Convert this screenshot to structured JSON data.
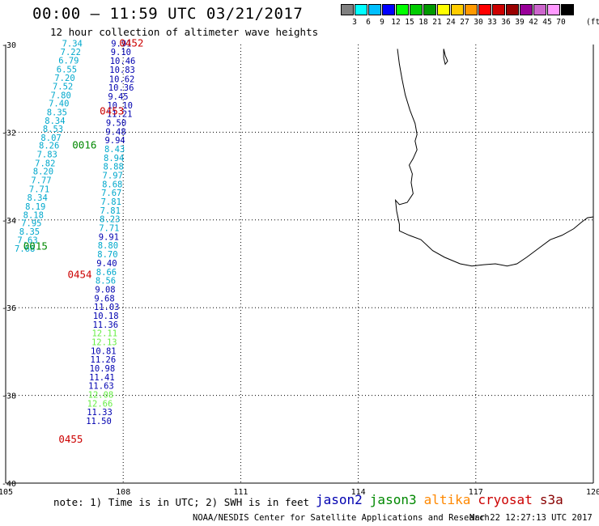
{
  "header": {
    "title": "00:00 — 11:59 UTC 03/21/2017",
    "subtitle": "12 hour collection of altimeter wave heights"
  },
  "scale": {
    "colors": [
      "#808080",
      "#00ffff",
      "#00bfff",
      "#0000ff",
      "#00ff00",
      "#00cc00",
      "#009900",
      "#ffff00",
      "#ffcc00",
      "#ff9900",
      "#ff0000",
      "#cc0000",
      "#990000",
      "#990099",
      "#cc66cc",
      "#ff99ff",
      "#000000"
    ],
    "ticks": [
      "3",
      "6",
      "9",
      "12",
      "15",
      "18",
      "21",
      "24",
      "27",
      "30",
      "33",
      "36",
      "39",
      "42",
      "45",
      "70"
    ],
    "unit": "(ft)"
  },
  "map": {
    "lon_range": [
      105,
      120
    ],
    "lat_range": [
      -40,
      -30
    ],
    "lon_labels": [
      "105",
      "108",
      "111",
      "114",
      "117",
      "120"
    ],
    "lat_labels": [
      "-30",
      "-32",
      "-34",
      "-36",
      "-38",
      "-40"
    ],
    "lon_grid": [
      108,
      111,
      114,
      117
    ],
    "lat_grid": [
      -32,
      -34,
      -36,
      -38
    ]
  },
  "colors": {
    "jason2": "#0000b0",
    "jason3": "#008800",
    "altika": "#ff8800",
    "cryosat": "#cc0000",
    "s3a": "#880000",
    "cyan": "#00a8cc",
    "lightgreen": "#66ee44"
  },
  "track_labels": [
    {
      "text": "0452",
      "lon": 107.9,
      "lat": -29.97,
      "color": "cryosat"
    },
    {
      "text": "0453",
      "lon": 107.4,
      "lat": -31.52,
      "color": "cryosat"
    },
    {
      "text": "0016",
      "lon": 106.7,
      "lat": -32.3,
      "color": "jason3"
    },
    {
      "text": "0015",
      "lon": 105.45,
      "lat": -34.6,
      "color": "jason3"
    },
    {
      "text": "0454",
      "lon": 106.58,
      "lat": -35.25,
      "color": "cryosat"
    },
    {
      "text": "0455",
      "lon": 106.35,
      "lat": -39.0,
      "color": "cryosat"
    }
  ],
  "observations_left": [
    {
      "v": "7.34",
      "lon": 106.96,
      "lat": -29.97,
      "c": "cyan"
    },
    {
      "v": "7.22",
      "lon": 106.92,
      "lat": -30.17,
      "c": "cyan"
    },
    {
      "v": "6.79",
      "lon": 106.87,
      "lat": -30.36,
      "c": "cyan"
    },
    {
      "v": "6.55",
      "lon": 106.82,
      "lat": -30.56,
      "c": "cyan"
    },
    {
      "v": "7.20",
      "lon": 106.77,
      "lat": -30.76,
      "c": "cyan"
    },
    {
      "v": "7.52",
      "lon": 106.72,
      "lat": -30.95,
      "c": "cyan"
    },
    {
      "v": "7.80",
      "lon": 106.67,
      "lat": -31.15,
      "c": "cyan"
    },
    {
      "v": "7.40",
      "lon": 106.62,
      "lat": -31.34,
      "c": "cyan"
    },
    {
      "v": "8.35",
      "lon": 106.57,
      "lat": -31.54,
      "c": "cyan"
    },
    {
      "v": "8.34",
      "lon": 106.52,
      "lat": -31.73,
      "c": "cyan"
    },
    {
      "v": "8.53",
      "lon": 106.47,
      "lat": -31.92,
      "c": "cyan"
    },
    {
      "v": "8.07",
      "lon": 106.42,
      "lat": -32.12,
      "c": "cyan"
    },
    {
      "v": "8.26",
      "lon": 106.37,
      "lat": -32.3,
      "c": "cyan"
    },
    {
      "v": "7.83",
      "lon": 106.32,
      "lat": -32.5,
      "c": "cyan"
    },
    {
      "v": "7.82",
      "lon": 106.27,
      "lat": -32.7,
      "c": "cyan"
    },
    {
      "v": "8.20",
      "lon": 106.22,
      "lat": -32.89,
      "c": "cyan"
    },
    {
      "v": "7.77",
      "lon": 106.17,
      "lat": -33.09,
      "c": "cyan"
    },
    {
      "v": "7.71",
      "lon": 106.12,
      "lat": -33.29,
      "c": "cyan"
    },
    {
      "v": "8.34",
      "lon": 106.07,
      "lat": -33.49,
      "c": "cyan"
    },
    {
      "v": "8.19",
      "lon": 106.02,
      "lat": -33.69,
      "c": "cyan"
    },
    {
      "v": "8.18",
      "lon": 105.97,
      "lat": -33.88,
      "c": "cyan"
    },
    {
      "v": "7.95",
      "lon": 105.92,
      "lat": -34.07,
      "c": "cyan"
    },
    {
      "v": "8.35",
      "lon": 105.87,
      "lat": -34.26,
      "c": "cyan"
    },
    {
      "v": "7.63",
      "lon": 105.82,
      "lat": -34.46,
      "c": "cyan"
    },
    {
      "v": "7.68",
      "lon": 105.75,
      "lat": -34.65,
      "c": "cyan"
    }
  ],
  "observations_right": [
    {
      "v": "9.91",
      "lon": 107.69,
      "lat": -29.97,
      "c": "jason2"
    },
    {
      "v": "9.10",
      "lon": 107.68,
      "lat": -30.17,
      "c": "jason2"
    },
    {
      "v": "10.46",
      "lon": 107.66,
      "lat": -30.37,
      "c": "jason2"
    },
    {
      "v": "10.83",
      "lon": 107.65,
      "lat": -30.57,
      "c": "jason2"
    },
    {
      "v": "10.62",
      "lon": 107.64,
      "lat": -30.78,
      "c": "jason2"
    },
    {
      "v": "10.36",
      "lon": 107.62,
      "lat": -30.98,
      "c": "jason2"
    },
    {
      "v": "9.45",
      "lon": 107.61,
      "lat": -31.18,
      "c": "jason2"
    },
    {
      "v": "10.10",
      "lon": 107.59,
      "lat": -31.38,
      "c": "jason2"
    },
    {
      "v": "11.21",
      "lon": 107.58,
      "lat": -31.58,
      "c": "jason2"
    },
    {
      "v": "9.50",
      "lon": 107.56,
      "lat": -31.78,
      "c": "jason2"
    },
    {
      "v": "9.48",
      "lon": 107.55,
      "lat": -31.98,
      "c": "jason2"
    },
    {
      "v": "9.94",
      "lon": 107.53,
      "lat": -32.18,
      "c": "jason2"
    },
    {
      "v": "8.43",
      "lon": 107.52,
      "lat": -32.38,
      "c": "cyan"
    },
    {
      "v": "8.94",
      "lon": 107.5,
      "lat": -32.58,
      "c": "cyan"
    },
    {
      "v": "8.88",
      "lon": 107.49,
      "lat": -32.78,
      "c": "cyan"
    },
    {
      "v": "7.97",
      "lon": 107.47,
      "lat": -32.98,
      "c": "cyan"
    },
    {
      "v": "8.68",
      "lon": 107.46,
      "lat": -33.18,
      "c": "cyan"
    },
    {
      "v": "7.67",
      "lon": 107.44,
      "lat": -33.38,
      "c": "cyan"
    },
    {
      "v": "7.81",
      "lon": 107.43,
      "lat": -33.58,
      "c": "cyan"
    },
    {
      "v": "7.81",
      "lon": 107.41,
      "lat": -33.78,
      "c": "cyan"
    },
    {
      "v": "8.23",
      "lon": 107.4,
      "lat": -33.98,
      "c": "cyan"
    },
    {
      "v": "7.71",
      "lon": 107.38,
      "lat": -34.18,
      "c": "cyan"
    },
    {
      "v": "9.91",
      "lon": 107.37,
      "lat": -34.38,
      "c": "jason2"
    },
    {
      "v": "8.80",
      "lon": 107.35,
      "lat": -34.58,
      "c": "cyan"
    },
    {
      "v": "8.70",
      "lon": 107.34,
      "lat": -34.78,
      "c": "cyan"
    },
    {
      "v": "9.40",
      "lon": 107.32,
      "lat": -34.98,
      "c": "jason2"
    },
    {
      "v": "8.66",
      "lon": 107.31,
      "lat": -35.18,
      "c": "cyan"
    },
    {
      "v": "8.56",
      "lon": 107.29,
      "lat": -35.38,
      "c": "cyan"
    },
    {
      "v": "9.08",
      "lon": 107.28,
      "lat": -35.58,
      "c": "jason2"
    },
    {
      "v": "9.68",
      "lon": 107.26,
      "lat": -35.78,
      "c": "jason2"
    },
    {
      "v": "11.03",
      "lon": 107.25,
      "lat": -35.98,
      "c": "jason2"
    },
    {
      "v": "10.18",
      "lon": 107.23,
      "lat": -36.18,
      "c": "jason2"
    },
    {
      "v": "11.36",
      "lon": 107.22,
      "lat": -36.38,
      "c": "jason2"
    },
    {
      "v": "12.11",
      "lon": 107.2,
      "lat": -36.58,
      "c": "lightgreen"
    },
    {
      "v": "12.13",
      "lon": 107.19,
      "lat": -36.78,
      "c": "lightgreen"
    },
    {
      "v": "10.81",
      "lon": 107.17,
      "lat": -36.98,
      "c": "jason2"
    },
    {
      "v": "11.26",
      "lon": 107.16,
      "lat": -37.18,
      "c": "jason2"
    },
    {
      "v": "10.98",
      "lon": 107.14,
      "lat": -37.38,
      "c": "jason2"
    },
    {
      "v": "11.41",
      "lon": 107.13,
      "lat": -37.58,
      "c": "jason2"
    },
    {
      "v": "11.63",
      "lon": 107.11,
      "lat": -37.78,
      "c": "jason2"
    },
    {
      "v": "12.08",
      "lon": 107.1,
      "lat": -37.98,
      "c": "lightgreen"
    },
    {
      "v": "12.66",
      "lon": 107.08,
      "lat": -38.18,
      "c": "lightgreen"
    },
    {
      "v": "11.33",
      "lon": 107.07,
      "lat": -38.38,
      "c": "jason2"
    },
    {
      "v": "11.50",
      "lon": 107.05,
      "lat": -38.58,
      "c": "jason2"
    }
  ],
  "coastline": [
    [
      115.0,
      -30.1
    ],
    [
      115.05,
      -30.45
    ],
    [
      115.12,
      -30.8
    ],
    [
      115.2,
      -31.15
    ],
    [
      115.32,
      -31.5
    ],
    [
      115.45,
      -31.8
    ],
    [
      115.5,
      -32.05
    ],
    [
      115.45,
      -32.2
    ],
    [
      115.5,
      -32.4
    ],
    [
      115.4,
      -32.6
    ],
    [
      115.3,
      -32.75
    ],
    [
      115.38,
      -32.95
    ],
    [
      115.35,
      -33.15
    ],
    [
      115.4,
      -33.4
    ],
    [
      115.25,
      -33.6
    ],
    [
      115.05,
      -33.65
    ],
    [
      114.95,
      -33.55
    ],
    [
      114.98,
      -33.8
    ],
    [
      115.05,
      -34.1
    ],
    [
      115.05,
      -34.25
    ],
    [
      115.3,
      -34.35
    ],
    [
      115.6,
      -34.45
    ],
    [
      115.9,
      -34.7
    ],
    [
      116.2,
      -34.85
    ],
    [
      116.6,
      -35.0
    ],
    [
      116.9,
      -35.05
    ],
    [
      117.2,
      -35.02
    ],
    [
      117.5,
      -35.0
    ],
    [
      117.8,
      -35.05
    ],
    [
      118.05,
      -35.0
    ],
    [
      118.3,
      -34.85
    ],
    [
      118.6,
      -34.65
    ],
    [
      118.9,
      -34.45
    ],
    [
      119.2,
      -34.35
    ],
    [
      119.5,
      -34.2
    ],
    [
      119.7,
      -34.05
    ],
    [
      119.85,
      -33.95
    ],
    [
      120.0,
      -33.93
    ]
  ],
  "island": [
    [
      116.18,
      -30.1
    ],
    [
      116.22,
      -30.25
    ],
    [
      116.28,
      -30.38
    ],
    [
      116.22,
      -30.45
    ],
    [
      116.18,
      -30.3
    ],
    [
      116.18,
      -30.1
    ]
  ],
  "footer": {
    "note": "note: 1) Time is in UTC; 2) SWH is in feet",
    "credit": "NOAA/NESDIS Center for Satellite Applications and Research",
    "timestamp": "Mar 22 12:27:13 UTC 2017"
  },
  "legend": [
    {
      "label": "jason2",
      "color": "#0000b0"
    },
    {
      "label": "jason3",
      "color": "#008800"
    },
    {
      "label": "altika",
      "color": "#ff8800"
    },
    {
      "label": "cryosat",
      "color": "#cc0000"
    },
    {
      "label": "s3a",
      "color": "#880000"
    }
  ]
}
